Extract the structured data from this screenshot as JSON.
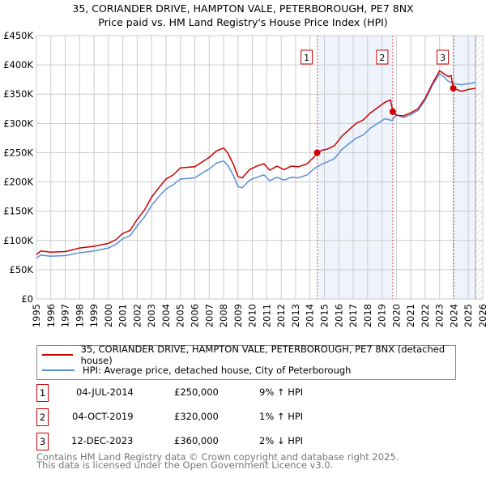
{
  "chart_data": {
    "type": "line",
    "title": "35, CORIANDER DRIVE, HAMPTON VALE, PETERBOROUGH, PE7 8NX",
    "subtitle": "Price paid vs. HM Land Registry's House Price Index (HPI)",
    "xlim": [
      1995,
      2026
    ],
    "ylim": [
      0,
      450000
    ],
    "x_ticks": [
      "1995",
      "1996",
      "1997",
      "1998",
      "1999",
      "2000",
      "2001",
      "2002",
      "2003",
      "2004",
      "2005",
      "2006",
      "2007",
      "2008",
      "2009",
      "2010",
      "2011",
      "2012",
      "2013",
      "2014",
      "2015",
      "2016",
      "2017",
      "2018",
      "2019",
      "2020",
      "2021",
      "2022",
      "2023",
      "2024",
      "2025",
      "2026"
    ],
    "y_ticks": [
      {
        "v": 0,
        "l": "£0"
      },
      {
        "v": 50000,
        "l": "£50K"
      },
      {
        "v": 100000,
        "l": "£100K"
      },
      {
        "v": 150000,
        "l": "£150K"
      },
      {
        "v": 200000,
        "l": "£200K"
      },
      {
        "v": 250000,
        "l": "£250K"
      },
      {
        "v": 300000,
        "l": "£300K"
      },
      {
        "v": 350000,
        "l": "£350K"
      },
      {
        "v": 400000,
        "l": "£400K"
      },
      {
        "v": 450000,
        "l": "£450K"
      }
    ],
    "grid": true,
    "colors": {
      "property": "#cc0000",
      "hpi": "#5b8fd6",
      "shade": "#eef3fc"
    },
    "series": [
      {
        "name": "35, CORIANDER DRIVE, HAMPTON VALE, PETERBOROUGH, PE7 8NX (detached house)",
        "key": "property",
        "x": [
          1995,
          1995.3,
          1996,
          1997,
          1998,
          1999,
          2000,
          2000.5,
          2001,
          2001.5,
          2002,
          2002.5,
          2003,
          2003.5,
          2004,
          2004.5,
          2005,
          2006,
          2006.5,
          2007,
          2007.5,
          2008,
          2008.3,
          2008.7,
          2009,
          2009.3,
          2009.8,
          2010.3,
          2010.8,
          2011.2,
          2011.7,
          2012.2,
          2012.7,
          2013.2,
          2013.8,
          2014.3,
          2014.5,
          2014.8,
          2015.2,
          2015.7,
          2016.2,
          2016.7,
          2017.2,
          2017.7,
          2018.2,
          2018.7,
          2019.2,
          2019.6,
          2019.75,
          2020,
          2020.5,
          2021,
          2021.5,
          2022,
          2022.5,
          2023,
          2023.3,
          2023.6,
          2023.8,
          2023.95,
          2024.5,
          2025,
          2025.5
        ],
        "y": [
          76000,
          82000,
          80000,
          81000,
          87000,
          90000,
          95000,
          101000,
          112000,
          117000,
          136000,
          152000,
          174000,
          190000,
          205000,
          212000,
          224000,
          226000,
          234000,
          242000,
          253000,
          258000,
          249000,
          229000,
          209000,
          207000,
          221000,
          227000,
          231000,
          220000,
          227000,
          221000,
          227000,
          226000,
          231000,
          243000,
          250000,
          254000,
          256000,
          262000,
          278000,
          289000,
          300000,
          306000,
          318000,
          327000,
          336000,
          340000,
          320000,
          314000,
          313000,
          318000,
          325000,
          343000,
          368000,
          390000,
          385000,
          380000,
          382000,
          360000,
          355000,
          358000,
          360000
        ]
      },
      {
        "name": "HPI: Average price, detached house, City of Peterborough",
        "key": "hpi",
        "x": [
          1995,
          1995.3,
          1996,
          1997,
          1998,
          1999,
          2000,
          2000.5,
          2001,
          2001.5,
          2002,
          2002.5,
          2003,
          2003.5,
          2004,
          2004.5,
          2005,
          2006,
          2006.5,
          2007,
          2007.5,
          2008,
          2008.3,
          2008.7,
          2009,
          2009.3,
          2009.8,
          2010.3,
          2010.8,
          2011.2,
          2011.7,
          2012.2,
          2012.7,
          2013.2,
          2013.8,
          2014.3,
          2014.8,
          2015.2,
          2015.7,
          2016.2,
          2016.7,
          2017.2,
          2017.7,
          2018.2,
          2018.7,
          2019.2,
          2019.7,
          2020,
          2020.5,
          2021,
          2021.5,
          2022,
          2022.5,
          2023,
          2023.3,
          2023.6,
          2024,
          2024.5,
          2025,
          2025.5
        ],
        "y": [
          70000,
          75000,
          73000,
          74000,
          79000,
          82000,
          87000,
          93000,
          103000,
          108000,
          125000,
          140000,
          160000,
          175000,
          188000,
          195000,
          205000,
          207000,
          215000,
          222000,
          232000,
          236000,
          228000,
          210000,
          192000,
          190000,
          203000,
          208000,
          212000,
          202000,
          208000,
          203000,
          208000,
          207000,
          212000,
          223000,
          230000,
          234000,
          240000,
          255000,
          265000,
          275000,
          280000,
          292000,
          300000,
          308000,
          305000,
          315000,
          310000,
          315000,
          322000,
          340000,
          365000,
          385000,
          380000,
          372000,
          368000,
          366000,
          368000,
          370000
        ]
      }
    ],
    "sales": [
      {
        "n": "1",
        "x": 2014.5,
        "price": 250000,
        "date": "04-JUL-2014",
        "price_label": "£250,000",
        "hpi": "9% ↑ HPI"
      },
      {
        "n": "2",
        "x": 2019.75,
        "price": 320000,
        "date": "04-OCT-2019",
        "price_label": "£320,000",
        "hpi": "1% ↑ HPI"
      },
      {
        "n": "3",
        "x": 2023.95,
        "price": 360000,
        "date": "12-DEC-2023",
        "price_label": "£360,000",
        "hpi": "2% ↓ HPI"
      }
    ],
    "shaded_ranges": [
      [
        2014.5,
        2019.75
      ],
      [
        2023.95,
        2025.5
      ]
    ],
    "forecast_start": 2025.5
  },
  "footer": {
    "line1": "Contains HM Land Registry data © Crown copyright and database right 2025.",
    "line2": "This data is licensed under the Open Government Licence v3.0."
  }
}
